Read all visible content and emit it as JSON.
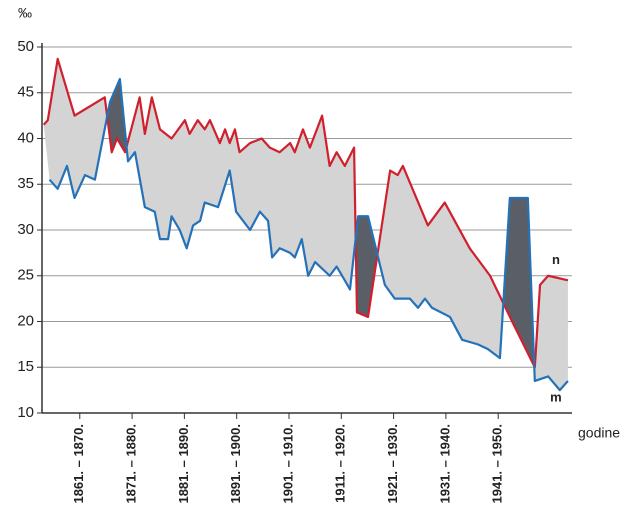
{
  "chart_data": {
    "type": "line",
    "y_label": "‰",
    "x_label": "godine",
    "xlim": [
      1859,
      1950.2
    ],
    "ylim": [
      10,
      50
    ],
    "yticks": [
      10,
      15,
      20,
      25,
      30,
      35,
      40,
      45,
      50
    ],
    "xticks": [
      {
        "value": 1865.5,
        "label": "1861. – 1870."
      },
      {
        "value": 1874.5,
        "label": "1871. – 1880."
      },
      {
        "value": 1883.5,
        "label": "1881. – 1890."
      },
      {
        "value": 1892.5,
        "label": "1891. – 1900."
      },
      {
        "value": 1901.5,
        "label": "1901. – 1910."
      },
      {
        "value": 1910.5,
        "label": "1911. – 1920."
      },
      {
        "value": 1919.5,
        "label": "1921. – 1930."
      },
      {
        "value": 1928.5,
        "label": "1931. – 1940."
      },
      {
        "value": 1937.5,
        "label": "1941. – 1950."
      }
    ],
    "grid": true,
    "fill_between": true,
    "fill_color": "#d4d4d4",
    "fill_color_inverse": "#5a5e66",
    "series": [
      {
        "name": "n",
        "color": "#d0202e",
        "x": [
          1859.3,
          1860,
          1861.7,
          1864.6,
          1869.8,
          1871.0,
          1871.9,
          1873.3,
          1875.8,
          1876.7,
          1877.9,
          1879.3,
          1881.3,
          1883.6,
          1884.4,
          1885.8,
          1887.0,
          1887.9,
          1889.6,
          1890.5,
          1891.3,
          1892.2,
          1893.0,
          1894.8,
          1896.8,
          1898.2,
          1899.9,
          1901.7,
          1902.5,
          1903.9,
          1905.1,
          1907.2,
          1908.5,
          1909.7,
          1911.1,
          1912.7,
          1913.2,
          1915.1,
          1918.9,
          1920.2,
          1921.1,
          1925.4,
          1928.3,
          1932.6,
          1936.1,
          1939.9,
          1943.8,
          1944.7,
          1946.1,
          1949.5
        ],
        "values": [
          41.5,
          42,
          48.7,
          42.5,
          44.5,
          38.5,
          40,
          38.5,
          44.5,
          40.5,
          44.5,
          41,
          40,
          42,
          40.5,
          42,
          41,
          42,
          39.5,
          41,
          39.5,
          41,
          38.5,
          39.5,
          40,
          39,
          38.5,
          39.5,
          38.5,
          41,
          39,
          42.5,
          37,
          38.5,
          37,
          39,
          21,
          20.5,
          36.5,
          36,
          37,
          30.5,
          33,
          28,
          25,
          20,
          15,
          24,
          25,
          24.5
        ]
      },
      {
        "name": "m",
        "color": "#2472b8",
        "x": [
          1860.3,
          1861.7,
          1863.3,
          1864.6,
          1866.4,
          1868.1,
          1870.7,
          1872.4,
          1873.8,
          1875.0,
          1876.7,
          1878.4,
          1879.3,
          1880.7,
          1881.3,
          1882.7,
          1883.9,
          1885.0,
          1886.2,
          1887.0,
          1889.3,
          1891.3,
          1892.4,
          1894.8,
          1896.5,
          1897.9,
          1898.6,
          1899.9,
          1901.7,
          1902.5,
          1903.7,
          1904.8,
          1906.0,
          1908.5,
          1909.7,
          1911.1,
          1912.0,
          1913.4,
          1915.1,
          1918.0,
          1919.7,
          1922.3,
          1923.7,
          1924.9,
          1926.1,
          1929.2,
          1931.3,
          1934.0,
          1935.7,
          1937.8,
          1939.5,
          1942.6,
          1943.8,
          1946.1,
          1948.1,
          1949.5
        ],
        "values": [
          35.5,
          34.5,
          37,
          33.5,
          36,
          35.5,
          44,
          46.5,
          37.5,
          38.5,
          32.5,
          32,
          29,
          29,
          31.5,
          30,
          28,
          30.5,
          31,
          33,
          32.5,
          36.5,
          32,
          30,
          32,
          31,
          27,
          28,
          27.5,
          27,
          29,
          25,
          26.5,
          25,
          26,
          24.5,
          23.5,
          31.5,
          31.5,
          24,
          22.5,
          22.5,
          21.5,
          22.5,
          21.5,
          20.5,
          18,
          17.5,
          17,
          16,
          33.5,
          33.5,
          13.5,
          14,
          12.5,
          13.5
        ]
      }
    ]
  }
}
